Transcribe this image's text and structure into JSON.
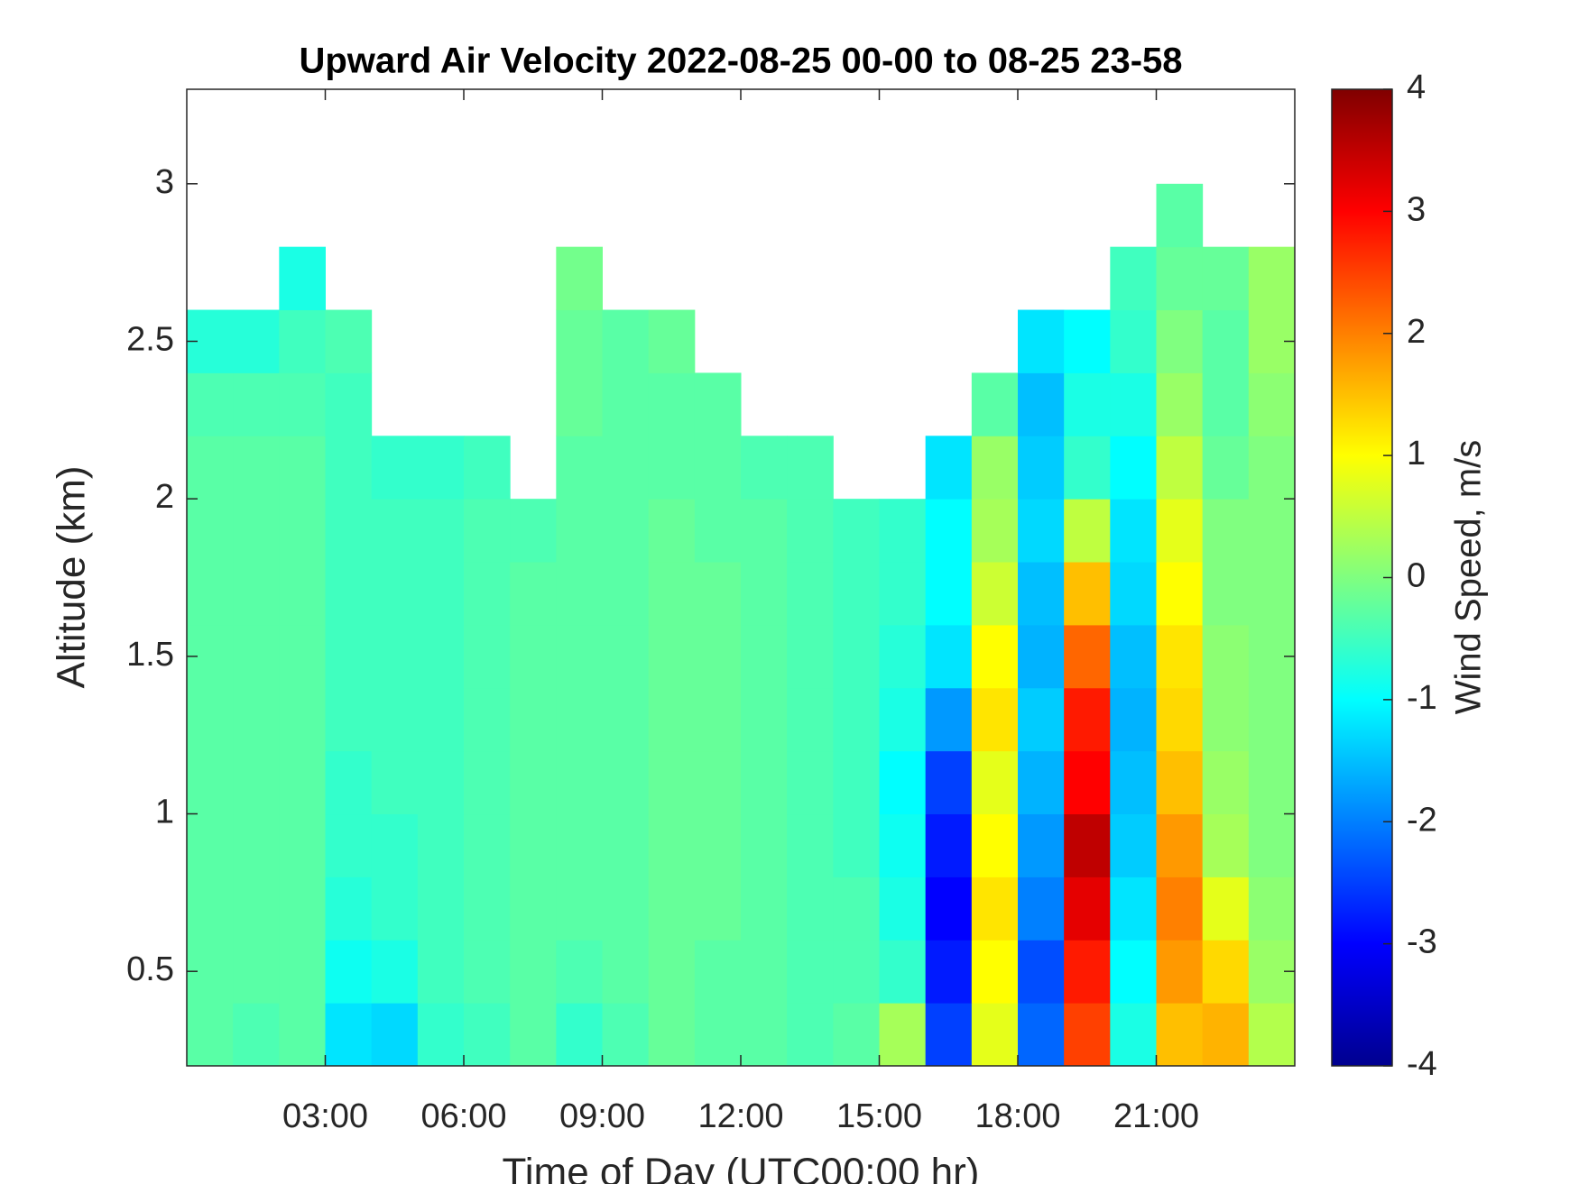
{
  "chart_data": {
    "type": "heatmap",
    "title": "Upward Air Velocity 2022-08-25 00-00 to 08-25 23-58",
    "xlabel": "Time of Day (UTC00:00 hr)",
    "ylabel": "Altitude (km)",
    "xlim": [
      0,
      24
    ],
    "xticks": [
      {
        "value": 3,
        "label": "03:00"
      },
      {
        "value": 6,
        "label": "06:00"
      },
      {
        "value": 9,
        "label": "09:00"
      },
      {
        "value": 12,
        "label": "12:00"
      },
      {
        "value": 15,
        "label": "15:00"
      },
      {
        "value": 18,
        "label": "18:00"
      },
      {
        "value": 21,
        "label": "21:00"
      }
    ],
    "ylim": [
      0.2,
      3.3
    ],
    "yticks": [
      0.5,
      1,
      1.5,
      2,
      2.5,
      3
    ],
    "xbins": [
      0,
      1,
      2,
      3,
      4,
      5,
      6,
      7,
      8,
      9,
      10,
      11,
      12,
      13,
      14,
      15,
      16,
      17,
      18,
      19,
      20,
      21,
      22,
      23,
      24
    ],
    "ybins": [
      0.2,
      0.4,
      0.6,
      0.8,
      1.0,
      1.2,
      1.4,
      1.6,
      1.8,
      2.0,
      2.2,
      2.4,
      2.6,
      2.8,
      3.0
    ],
    "colormap": "jet",
    "colorbar": {
      "label": "Wind Speed, m/s",
      "lim": [
        -4,
        4
      ],
      "ticks": [
        -4,
        -3,
        -2,
        -1,
        0,
        1,
        2,
        3,
        4
      ]
    },
    "values": [
      [
        -0.3,
        -0.4,
        -0.3,
        -1.2,
        -1.3,
        -0.6,
        -0.5,
        -0.3,
        -0.6,
        -0.4,
        -0.2,
        -0.3,
        -0.3,
        -0.4,
        -0.3,
        0.3,
        -2.5,
        0.8,
        -2.2,
        2.5,
        -0.8,
        1.5,
        1.6,
        0.4
      ],
      [
        -0.3,
        -0.3,
        -0.3,
        -0.9,
        -0.8,
        -0.5,
        -0.4,
        -0.3,
        -0.4,
        -0.3,
        -0.2,
        -0.3,
        -0.3,
        -0.4,
        -0.4,
        -0.6,
        -2.8,
        1.0,
        -2.4,
        2.8,
        -1.0,
        1.8,
        1.3,
        0.2
      ],
      [
        -0.3,
        -0.3,
        -0.3,
        -0.7,
        -0.6,
        -0.5,
        -0.4,
        -0.3,
        -0.3,
        -0.3,
        -0.2,
        -0.2,
        -0.3,
        -0.4,
        -0.4,
        -0.8,
        -3.0,
        1.2,
        -2.0,
        3.2,
        -1.2,
        2.0,
        0.8,
        0.1
      ],
      [
        -0.3,
        -0.3,
        -0.3,
        -0.6,
        -0.6,
        -0.5,
        -0.4,
        -0.3,
        -0.3,
        -0.3,
        -0.2,
        -0.2,
        -0.3,
        -0.4,
        -0.5,
        -0.9,
        -2.8,
        1.0,
        -1.8,
        3.5,
        -1.4,
        1.8,
        0.3,
        0.0
      ],
      [
        -0.3,
        -0.3,
        -0.3,
        -0.6,
        -0.5,
        -0.5,
        -0.4,
        -0.3,
        -0.3,
        -0.3,
        -0.2,
        -0.2,
        -0.3,
        -0.4,
        -0.5,
        -1.0,
        -2.5,
        0.8,
        -1.6,
        3.0,
        -1.5,
        1.5,
        0.2,
        0.0
      ],
      [
        -0.3,
        -0.3,
        -0.3,
        -0.5,
        -0.5,
        -0.5,
        -0.4,
        -0.3,
        -0.3,
        -0.3,
        -0.2,
        -0.2,
        -0.3,
        -0.4,
        -0.5,
        -0.8,
        -1.8,
        1.2,
        -1.4,
        2.8,
        -1.6,
        1.3,
        0.1,
        0.0
      ],
      [
        -0.3,
        -0.3,
        -0.3,
        -0.5,
        -0.5,
        -0.5,
        -0.4,
        -0.3,
        -0.3,
        -0.3,
        -0.2,
        -0.2,
        -0.3,
        -0.4,
        -0.5,
        -0.7,
        -1.2,
        1.0,
        -1.6,
        2.2,
        -1.5,
        1.2,
        0.1,
        0.0
      ],
      [
        -0.3,
        -0.3,
        -0.3,
        -0.5,
        -0.5,
        -0.5,
        -0.4,
        -0.3,
        -0.3,
        -0.3,
        -0.2,
        -0.2,
        -0.3,
        -0.4,
        -0.5,
        -0.6,
        -1.0,
        0.6,
        -1.5,
        1.5,
        -1.3,
        1.0,
        0.0,
        0.0
      ],
      [
        -0.3,
        -0.3,
        -0.3,
        -0.5,
        -0.5,
        -0.5,
        -0.4,
        -0.4,
        -0.3,
        -0.3,
        -0.2,
        -0.3,
        -0.3,
        -0.4,
        -0.5,
        -0.6,
        -1.0,
        0.3,
        -1.3,
        0.5,
        -1.2,
        0.8,
        0.0,
        0.0
      ],
      [
        -0.3,
        -0.3,
        -0.3,
        -0.5,
        -0.6,
        -0.6,
        -0.5,
        null,
        -0.3,
        -0.3,
        -0.3,
        -0.3,
        -0.4,
        -0.4,
        null,
        null,
        -1.2,
        0.2,
        -1.4,
        -0.6,
        -1.0,
        0.5,
        -0.2,
        0.0
      ],
      [
        -0.4,
        -0.4,
        -0.4,
        -0.5,
        null,
        null,
        null,
        null,
        -0.2,
        -0.3,
        -0.3,
        -0.3,
        null,
        null,
        null,
        null,
        null,
        -0.3,
        -1.5,
        -0.8,
        -0.8,
        0.2,
        -0.3,
        0.1
      ],
      [
        -0.7,
        -0.7,
        -0.5,
        -0.4,
        null,
        null,
        null,
        null,
        -0.2,
        -0.3,
        -0.2,
        null,
        null,
        null,
        null,
        null,
        null,
        null,
        -1.2,
        -1.0,
        -0.6,
        0.0,
        -0.3,
        0.2
      ],
      [
        null,
        null,
        -0.8,
        null,
        null,
        null,
        null,
        null,
        -0.1,
        null,
        null,
        null,
        null,
        null,
        null,
        null,
        null,
        null,
        null,
        null,
        -0.5,
        -0.2,
        -0.2,
        0.2
      ],
      [
        null,
        null,
        null,
        null,
        null,
        null,
        null,
        null,
        null,
        null,
        null,
        null,
        null,
        null,
        null,
        null,
        null,
        null,
        null,
        null,
        null,
        -0.3,
        null,
        null
      ]
    ]
  }
}
